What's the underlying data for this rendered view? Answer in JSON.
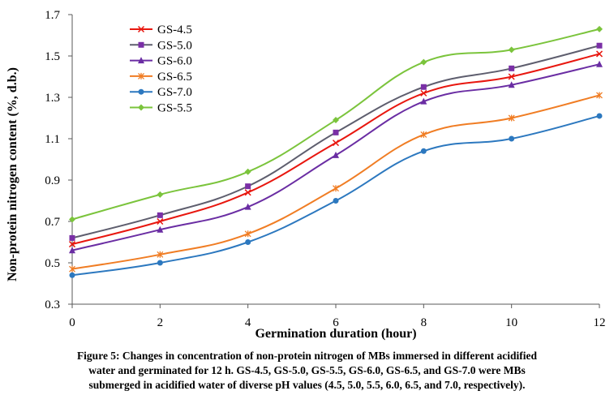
{
  "chart_data": {
    "type": "line",
    "xlabel": "Germination duration (hour)",
    "ylabel": "Non-protein nitrogen content (%, d.b.)",
    "x": [
      0,
      2,
      4,
      6,
      8,
      10,
      12
    ],
    "x_ticks": [
      "0",
      "2",
      "4",
      "6",
      "8",
      "10",
      "12"
    ],
    "xlim": [
      0,
      12
    ],
    "ylim": [
      0.3,
      1.7
    ],
    "y_ticks": [
      "0.3",
      "0.5",
      "0.7",
      "0.9",
      "1.1",
      "1.3",
      "1.5",
      "1.7"
    ],
    "grid": false,
    "legend_position": "top-left",
    "series": [
      {
        "name": "GS-4.5",
        "color": "#e8170f",
        "marker": "x",
        "values": [
          0.59,
          0.7,
          0.84,
          1.08,
          1.32,
          1.4,
          1.51
        ]
      },
      {
        "name": "GS-5.0",
        "color": "#5e5e6e",
        "marker_color": "#7a2fa6",
        "marker": "square",
        "values": [
          0.62,
          0.73,
          0.87,
          1.13,
          1.35,
          1.44,
          1.55
        ]
      },
      {
        "name": "GS-6.0",
        "color": "#6a2da3",
        "marker": "triangle",
        "values": [
          0.56,
          0.66,
          0.77,
          1.02,
          1.28,
          1.36,
          1.46
        ]
      },
      {
        "name": "GS-6.5",
        "color": "#f07d24",
        "marker": "asterisk",
        "values": [
          0.47,
          0.54,
          0.64,
          0.86,
          1.12,
          1.2,
          1.31
        ]
      },
      {
        "name": "GS-7.0",
        "color": "#2c78bf",
        "marker": "circle",
        "values": [
          0.44,
          0.5,
          0.6,
          0.8,
          1.04,
          1.1,
          1.21
        ]
      },
      {
        "name": "GS-5.5",
        "color": "#7bc43c",
        "marker": "diamond",
        "values": [
          0.71,
          0.83,
          0.94,
          1.19,
          1.47,
          1.53,
          1.63
        ]
      }
    ]
  },
  "caption": {
    "line1": "Figure 5: Changes in concentration of non-protein nitrogen of MBs immersed in different acidified",
    "line2": "water and germinated for 12 h. GS-4.5, GS-5.0, GS-5.5, GS-6.0, GS-6.5, and GS-7.0 were MBs",
    "line3": "submerged in acidified water of diverse pH values (4.5, 5.0, 5.5, 6.0, 6.5, and 7.0, respectively)."
  }
}
